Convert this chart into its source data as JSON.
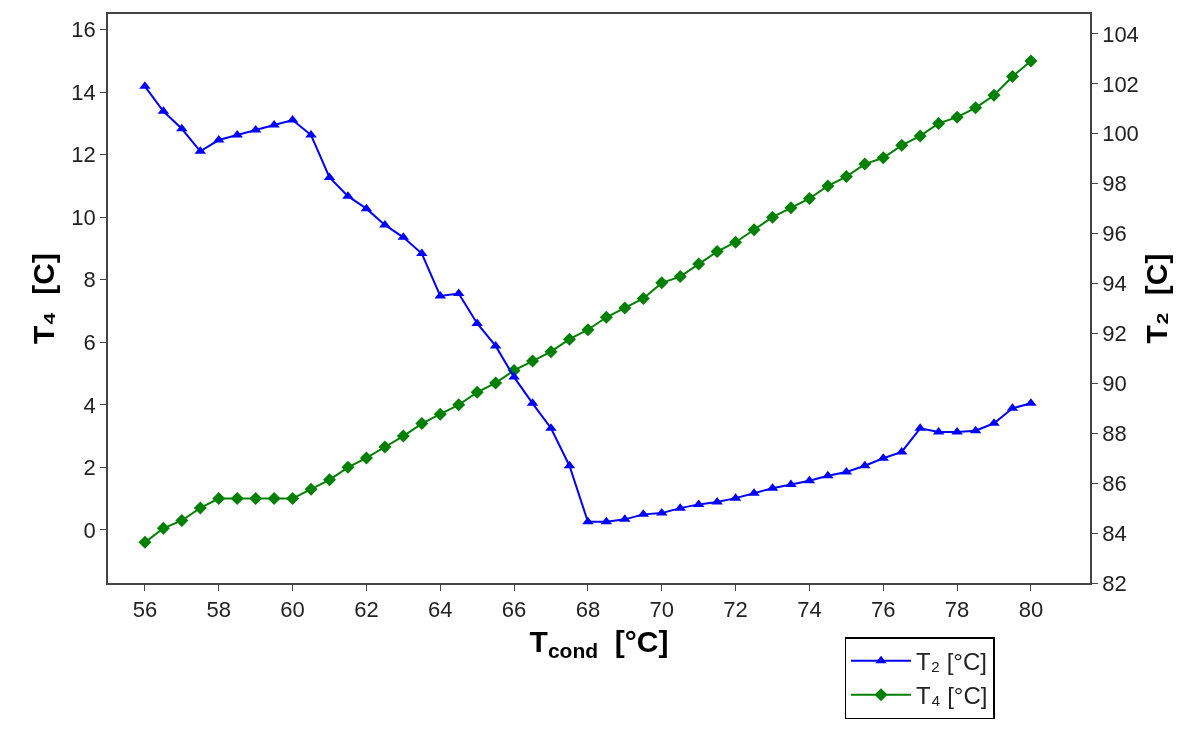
{
  "chart_data": {
    "type": "line",
    "xlabel": "T$_{cond}$  [°C]",
    "ylabel": "T₄  [C]",
    "y2label": "T₂  [C]",
    "x": [
      56,
      56.5,
      57,
      57.5,
      58,
      58.5,
      59,
      59.5,
      60,
      60.5,
      61,
      61.5,
      62,
      62.5,
      63,
      63.5,
      64,
      64.5,
      65,
      65.5,
      66,
      66.5,
      67,
      67.5,
      68,
      68.5,
      69,
      69.5,
      70,
      70.5,
      71,
      71.5,
      72,
      72.5,
      73,
      73.5,
      74,
      74.5,
      75,
      75.5,
      76,
      76.5,
      77,
      77.5,
      78,
      78.5,
      79,
      79.5,
      80
    ],
    "series": [
      {
        "name": "T₂ [°C]",
        "color": "#0000ff",
        "axis": "y2",
        "marker": "triangle",
        "values": [
          101.9,
          100.9,
          100.2,
          99.3,
          99.75,
          99.95,
          100.15,
          100.35,
          100.55,
          99.95,
          98.25,
          97.5,
          97.0,
          96.35,
          95.85,
          95.2,
          93.5,
          93.6,
          92.4,
          91.5,
          90.25,
          89.2,
          88.2,
          86.7,
          84.45,
          84.45,
          84.55,
          84.75,
          84.8,
          85.0,
          85.15,
          85.25,
          85.4,
          85.6,
          85.8,
          85.95,
          86.1,
          86.3,
          86.45,
          86.7,
          87.0,
          87.25,
          88.2,
          88.05,
          88.05,
          88.1,
          88.4,
          89.0,
          89.2
        ]
      },
      {
        "name": "T₄ [°C]",
        "color": "#008000",
        "marker": "diamond",
        "values": [
          -0.4,
          0.05,
          0.3,
          0.7,
          1.0,
          1.0,
          1.0,
          1.0,
          1.0,
          1.3,
          1.6,
          2.0,
          2.3,
          2.65,
          3.0,
          3.4,
          3.7,
          4.0,
          4.4,
          4.7,
          5.1,
          5.4,
          5.7,
          6.1,
          6.4,
          6.8,
          7.1,
          7.4,
          7.9,
          8.1,
          8.5,
          8.9,
          9.2,
          9.6,
          10.0,
          10.3,
          10.6,
          11.0,
          11.3,
          11.7,
          11.9,
          12.3,
          12.6,
          13.0,
          13.2,
          13.5,
          13.9,
          14.5,
          15.0
        ]
      }
    ],
    "xlim": [
      55,
      81.6
    ],
    "xticks": [
      56,
      58,
      60,
      62,
      64,
      66,
      68,
      70,
      72,
      74,
      76,
      78,
      80
    ],
    "ylim": [
      -1.7,
      16.5
    ],
    "yticks": [
      0,
      2,
      4,
      6,
      8,
      10,
      12,
      14,
      16
    ],
    "y2lim": [
      82,
      104.8
    ],
    "y2ticks": [
      82,
      84,
      86,
      88,
      90,
      92,
      94,
      96,
      98,
      100,
      102,
      104
    ],
    "legend": "bottom right",
    "line_style": "solid"
  }
}
